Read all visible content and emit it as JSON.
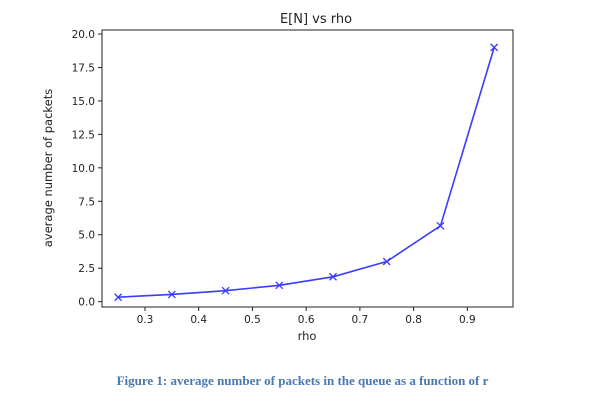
{
  "chart_data": {
    "type": "line",
    "title": "E[N] vs rho",
    "xlabel": "rho",
    "ylabel": "average number of packets",
    "xlim": [
      0.22,
      0.985
    ],
    "ylim": [
      -0.4,
      20.3
    ],
    "xticks": [
      0.3,
      0.4,
      0.5,
      0.6,
      0.7,
      0.8,
      0.9
    ],
    "xtick_labels": [
      "0.3",
      "0.4",
      "0.5",
      "0.6",
      "0.7",
      "0.8",
      "0.9"
    ],
    "yticks": [
      0.0,
      2.5,
      5.0,
      7.5,
      10.0,
      12.5,
      15.0,
      17.5,
      20.0
    ],
    "ytick_labels": [
      "0.0",
      "2.5",
      "5.0",
      "7.5",
      "10.0",
      "12.5",
      "15.0",
      "17.5",
      "20.0"
    ],
    "grid": false,
    "series": [
      {
        "x": [
          0.25,
          0.35,
          0.45,
          0.55,
          0.65,
          0.75,
          0.85,
          0.95
        ],
        "y": [
          0.33,
          0.54,
          0.82,
          1.22,
          1.86,
          3.0,
          5.67,
          19.0
        ],
        "color": "#3b3bff",
        "marker": "x"
      }
    ]
  },
  "caption": "Figure 1: average number of packets in the queue as a function of r"
}
